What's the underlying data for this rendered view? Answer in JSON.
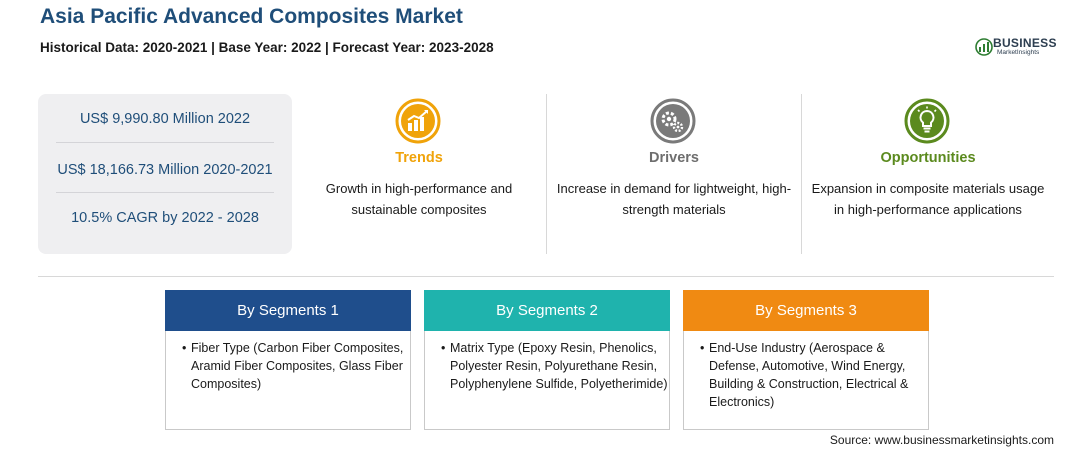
{
  "header": {
    "title": "Asia Pacific Advanced Composites Market",
    "subtitle": "Historical Data: 2020-2021 | Base Year: 2022 | Forecast Year: 2023-2028"
  },
  "logo": {
    "name": "BUSINESS",
    "tagline": "MarketInsights",
    "icon": "bmi-logo-icon"
  },
  "stats": [
    "US$ 9,990.80 Million 2022",
    "US$ 18,166.73 Million 2020-2021",
    "10.5% CAGR by 2022 - 2028"
  ],
  "columns": [
    {
      "heading": "Trends",
      "text": "Growth in high-performance and sustainable composites",
      "icon": "chart-growth-icon",
      "color": "#f0a30a"
    },
    {
      "heading": "Drivers",
      "text": "Increase in demand for lightweight, high-strength materials",
      "icon": "gears-icon",
      "color": "#7a7a7a"
    },
    {
      "heading": "Opportunities",
      "text": "Expansion in composite materials usage in high-performance applications",
      "icon": "lightbulb-icon",
      "color": "#5b8a1e"
    }
  ],
  "segments": [
    {
      "heading": "By Segments 1",
      "bullet": "•",
      "text": "Fiber Type (Carbon Fiber Composites, Aramid Fiber Composites, Glass Fiber Composites)",
      "color": "#1f4e8c"
    },
    {
      "heading": "By Segments 2",
      "bullet": "•",
      "text": "Matrix Type (Epoxy Resin, Phenolics, Polyester Resin, Polyurethane Resin, Polyphenylene Sulfide, Polyetherimide)",
      "color": "#1fb3ad"
    },
    {
      "heading": "By Segments 3",
      "bullet": "•",
      "text": "End-Use Industry (Aerospace & Defense, Automotive, Wind Energy, Building & Construction, Electrical & Electronics)",
      "color": "#f08a12"
    }
  ],
  "footer": {
    "source": "Source: www.businessmarketinsights.com"
  }
}
